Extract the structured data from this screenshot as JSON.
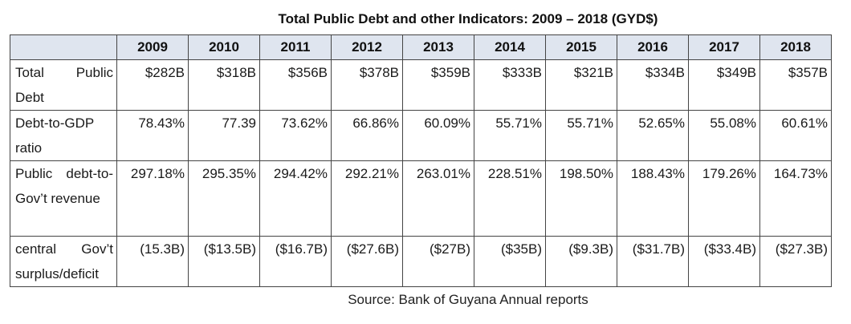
{
  "title": "Total Public Debt and other Indicators: 2009 – 2018 (GYD$)",
  "table": {
    "corner": "",
    "years": [
      "2009",
      "2010",
      "2011",
      "2012",
      "2013",
      "2014",
      "2015",
      "2016",
      "2017",
      "2018"
    ],
    "rows": [
      {
        "label": "Total Public Debt",
        "values": [
          "$282B",
          "$318B",
          "$356B",
          "$378B",
          "$359B",
          "$333B",
          "$321B",
          "$334B",
          "$349B",
          "$357B"
        ]
      },
      {
        "label": "Debt-to-GDP ratio",
        "values": [
          "78.43%",
          "77.39",
          "73.62%",
          "66.86%",
          "60.09%",
          "55.71%",
          "55.71%",
          "52.65%",
          "55.08%",
          "60.61%"
        ]
      },
      {
        "label": "Public debt-to- Gov’t revenue",
        "values": [
          "297.18%",
          "295.35%",
          "294.42%",
          "292.21%",
          "263.01%",
          "228.51%",
          "198.50%",
          "188.43%",
          "179.26%",
          "164.73%"
        ]
      },
      {
        "label": "central Gov’t surplus/deficit",
        "values": [
          "(15.3B)",
          "($13.5B)",
          "($16.7B)",
          "($27.6B)",
          "($27B)",
          "($35B)",
          "($9.3B)",
          "($31.7B)",
          "($33.4B)",
          "($27.3B)"
        ]
      }
    ]
  },
  "source": "Source: Bank of Guyana Annual reports"
}
